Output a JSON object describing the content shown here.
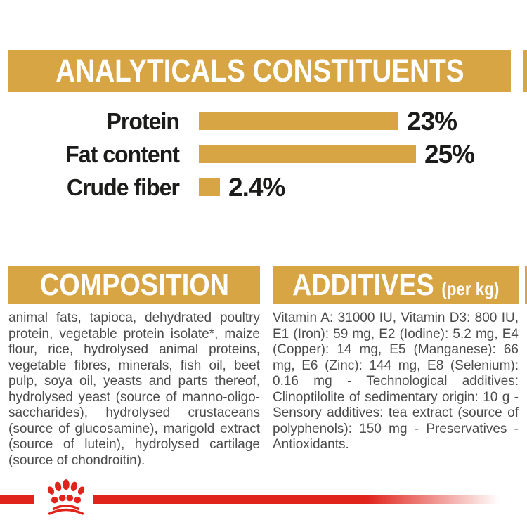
{
  "analyticals": {
    "title": "ANALYTICALS CONSTITUENTS"
  },
  "chart_data": {
    "type": "bar",
    "orientation": "horizontal",
    "categories": [
      "Protein",
      "Fat content",
      "Crude fiber"
    ],
    "values": [
      23,
      25,
      2.4
    ],
    "value_labels": [
      "23%",
      "25%",
      "2.4%"
    ],
    "unit": "%",
    "xlim": [
      0,
      25
    ],
    "grid": false,
    "legend": false,
    "bar_color": "#D8A544",
    "label_color": "#1C1C1A"
  },
  "composition": {
    "title": "COMPOSITION",
    "body": "animal fats, tapioca, dehydrated poultry protein, vegetable protein isolate*, maize flour, rice, hydrolysed animal proteins, vegetable fibres, minerals, fish oil, beet pulp, soya oil, yeasts and parts thereof, hydrolysed yeast (source of manno-oligo-saccharides), hydrolysed crustaceans (source of glucosamine), marigold extract (source of lutein), hydrolysed cartilage (source of chondroitin)."
  },
  "additives": {
    "title": "ADDITIVES",
    "title_suffix": "(per kg)",
    "body": "Vitamin A: 31000 IU, Vitamin D3: 800 IU, E1 (Iron): 59 mg, E2 (Iodine): 5.2 mg, E4 (Copper): 14 mg, E5 (Manganese): 66 mg, E6 (Zinc): 144 mg, E8 (Selenium): 0.16 mg - Technological additives: Clinoptilolite of sedimentary origin: 10 g - Sensory additives: tea extract (source of polyphenols): 150 mg - Preservatives - Antioxidants."
  },
  "footer": {
    "logo": "royal-canin-crown-logo"
  },
  "colors": {
    "gold": "#D8A544",
    "red": "#E0241C",
    "ink": "#1C1C1A",
    "gray": "#4C4C4E"
  }
}
